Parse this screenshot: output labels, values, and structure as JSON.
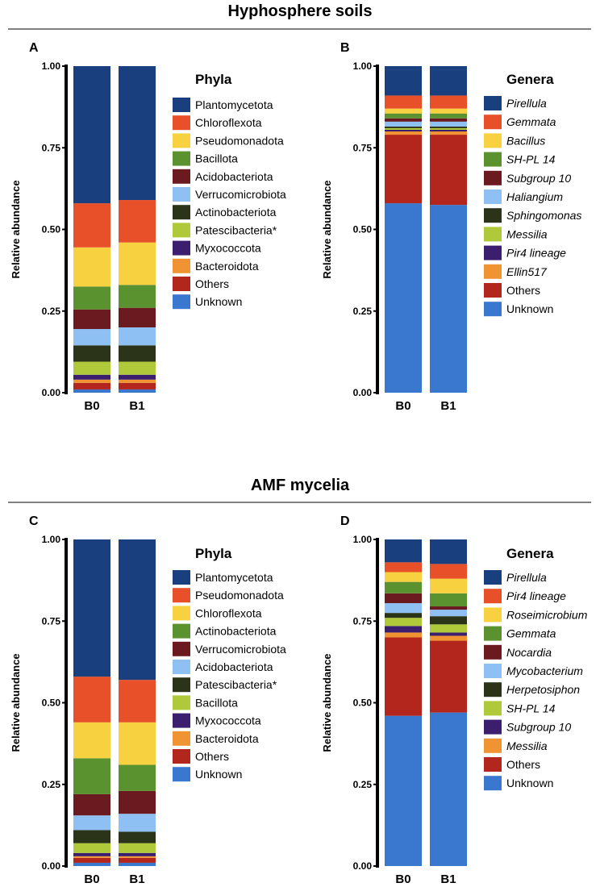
{
  "sections": [
    {
      "title": "Hyphosphere soils"
    },
    {
      "title": "AMF mycelia"
    }
  ],
  "chart_data": [
    {
      "panel": "A",
      "section": 0,
      "type": "bar",
      "stacked": true,
      "legend_title": "Phyla",
      "legend_italic": false,
      "ylabel": "Relative abundance",
      "ylim": [
        0,
        1
      ],
      "yticks": [
        "0.00",
        "0.25",
        "0.50",
        "0.75",
        "1.00"
      ],
      "categories": [
        "B0",
        "B1"
      ],
      "series": [
        {
          "name": "Unknown",
          "color": "#3a78cf",
          "values": [
            0.01,
            0.01
          ]
        },
        {
          "name": "Others",
          "color": "#b3261e",
          "values": [
            0.02,
            0.02
          ]
        },
        {
          "name": "Bacteroidota",
          "color": "#f09433",
          "values": [
            0.01,
            0.01
          ]
        },
        {
          "name": "Myxococcota",
          "color": "#3b1e6e",
          "values": [
            0.015,
            0.015
          ]
        },
        {
          "name": "Patescibacteria*",
          "color": "#afc93a",
          "values": [
            0.04,
            0.04
          ]
        },
        {
          "name": "Actinobacteriota",
          "color": "#2b3419",
          "values": [
            0.05,
            0.05
          ]
        },
        {
          "name": "Verrucomicrobiota",
          "color": "#8ec0f4",
          "values": [
            0.05,
            0.055
          ]
        },
        {
          "name": "Acidobacteriota",
          "color": "#6b1a20",
          "values": [
            0.06,
            0.06
          ]
        },
        {
          "name": "Bacillota",
          "color": "#5a9230",
          "values": [
            0.07,
            0.07
          ]
        },
        {
          "name": "Pseudomonadota",
          "color": "#f7d140",
          "values": [
            0.12,
            0.13
          ]
        },
        {
          "name": "Chloroflexota",
          "color": "#e8502a",
          "values": [
            0.135,
            0.13
          ]
        },
        {
          "name": "Plantomycetota",
          "color": "#1a3f7f",
          "values": [
            0.42,
            0.41
          ]
        }
      ]
    },
    {
      "panel": "B",
      "section": 0,
      "type": "bar",
      "stacked": true,
      "legend_title": "Genera",
      "legend_italic": true,
      "ylabel": "Relative abundance",
      "ylim": [
        0,
        1
      ],
      "yticks": [
        "0.00",
        "0.25",
        "0.50",
        "0.75",
        "1.00"
      ],
      "categories": [
        "B0",
        "B1"
      ],
      "series": [
        {
          "name": "Unknown",
          "color": "#3a78cf",
          "values": [
            0.58,
            0.575
          ]
        },
        {
          "name": "Others",
          "color": "#b3261e",
          "values": [
            0.21,
            0.215
          ]
        },
        {
          "name": "Ellin517",
          "color": "#f09433",
          "values": [
            0.01,
            0.01
          ]
        },
        {
          "name": "Pir4 lineage",
          "color": "#3b1e6e",
          "values": [
            0.005,
            0.005
          ]
        },
        {
          "name": "Messilia",
          "color": "#afc93a",
          "values": [
            0.005,
            0.005
          ]
        },
        {
          "name": "Sphingomonas",
          "color": "#2b3419",
          "values": [
            0.005,
            0.005
          ]
        },
        {
          "name": "Haliangium",
          "color": "#8ec0f4",
          "values": [
            0.015,
            0.015
          ]
        },
        {
          "name": "Subgroup 10",
          "color": "#6b1a20",
          "values": [
            0.01,
            0.01
          ]
        },
        {
          "name": "SH-PL 14",
          "color": "#5a9230",
          "values": [
            0.015,
            0.015
          ]
        },
        {
          "name": "Bacillus",
          "color": "#f7d140",
          "values": [
            0.015,
            0.015
          ]
        },
        {
          "name": "Gemmata",
          "color": "#e8502a",
          "values": [
            0.04,
            0.04
          ]
        },
        {
          "name": "Pirellula",
          "color": "#1a3f7f",
          "values": [
            0.08,
            0.08
          ]
        }
      ]
    },
    {
      "panel": "C",
      "section": 1,
      "type": "bar",
      "stacked": true,
      "legend_title": "Phyla",
      "legend_italic": false,
      "ylabel": "Relative abundance",
      "ylim": [
        0,
        1
      ],
      "yticks": [
        "0.00",
        "0.25",
        "0.50",
        "0.75",
        "1.00"
      ],
      "categories": [
        "B0",
        "B1"
      ],
      "series": [
        {
          "name": "Unknown",
          "color": "#3a78cf",
          "values": [
            0.01,
            0.01
          ]
        },
        {
          "name": "Others",
          "color": "#b3261e",
          "values": [
            0.015,
            0.015
          ]
        },
        {
          "name": "Bacteroidota",
          "color": "#f09433",
          "values": [
            0.005,
            0.005
          ]
        },
        {
          "name": "Myxococcota",
          "color": "#3b1e6e",
          "values": [
            0.01,
            0.01
          ]
        },
        {
          "name": "Bacillota",
          "color": "#afc93a",
          "values": [
            0.03,
            0.03
          ]
        },
        {
          "name": "Patescibacteria*",
          "color": "#2b3419",
          "values": [
            0.04,
            0.035
          ]
        },
        {
          "name": "Acidobacteriota",
          "color": "#8ec0f4",
          "values": [
            0.045,
            0.055
          ]
        },
        {
          "name": "Verrucomicrobiota",
          "color": "#6b1a20",
          "values": [
            0.065,
            0.07
          ]
        },
        {
          "name": "Actinobacteriota",
          "color": "#5a9230",
          "values": [
            0.11,
            0.08
          ]
        },
        {
          "name": "Chloroflexota",
          "color": "#f7d140",
          "values": [
            0.11,
            0.13
          ]
        },
        {
          "name": "Pseudomonadota",
          "color": "#e8502a",
          "values": [
            0.14,
            0.13
          ]
        },
        {
          "name": "Plantomycetota",
          "color": "#1a3f7f",
          "values": [
            0.42,
            0.43
          ]
        }
      ]
    },
    {
      "panel": "D",
      "section": 1,
      "type": "bar",
      "stacked": true,
      "legend_title": "Genera",
      "legend_italic": true,
      "ylabel": "Relative abundance",
      "ylim": [
        0,
        1
      ],
      "yticks": [
        "0.00",
        "0.25",
        "0.50",
        "0.75",
        "1.00"
      ],
      "categories": [
        "B0",
        "B1"
      ],
      "series": [
        {
          "name": "Unknown",
          "color": "#3a78cf",
          "values": [
            0.46,
            0.47
          ]
        },
        {
          "name": "Others",
          "color": "#b3261e",
          "values": [
            0.24,
            0.22
          ]
        },
        {
          "name": "Messilia",
          "color": "#f09433",
          "values": [
            0.015,
            0.015
          ]
        },
        {
          "name": "Subgroup 10",
          "color": "#3b1e6e",
          "values": [
            0.02,
            0.01
          ]
        },
        {
          "name": "SH-PL 14",
          "color": "#afc93a",
          "values": [
            0.025,
            0.025
          ]
        },
        {
          "name": "Herpetosiphon",
          "color": "#2b3419",
          "values": [
            0.015,
            0.025
          ]
        },
        {
          "name": "Mycobacterium",
          "color": "#8ec0f4",
          "values": [
            0.03,
            0.02
          ]
        },
        {
          "name": "Nocardia",
          "color": "#6b1a20",
          "values": [
            0.03,
            0.01
          ]
        },
        {
          "name": "Gemmata",
          "color": "#5a9230",
          "values": [
            0.035,
            0.04
          ]
        },
        {
          "name": "Roseimicrobium",
          "color": "#f7d140",
          "values": [
            0.03,
            0.045
          ]
        },
        {
          "name": "Pir4 lineage",
          "color": "#e8502a",
          "values": [
            0.03,
            0.045
          ]
        },
        {
          "name": "Pirellula",
          "color": "#1a3f7f",
          "values": [
            0.07,
            0.075
          ]
        }
      ]
    }
  ]
}
